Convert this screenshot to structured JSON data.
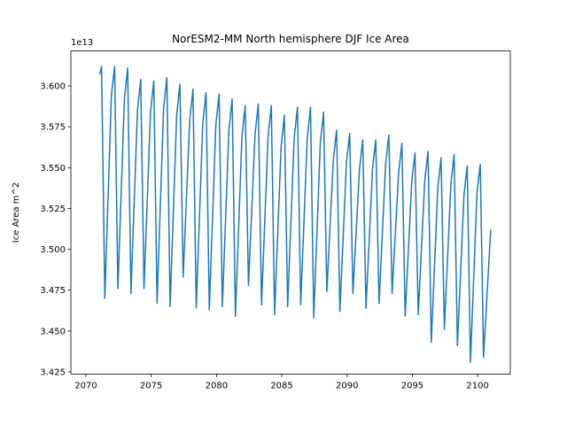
{
  "chart_data": {
    "type": "line",
    "title": "NorESM2-MM North hemisphere DJF Ice Area",
    "y_label": "Ice Area m^2",
    "y_offset_label": "1e13",
    "color": "#1f77b4",
    "grid": false,
    "xlim": [
      2068.85,
      2102.5
    ],
    "ylim": [
      3.4237,
      3.6214
    ],
    "xticks": [
      2070,
      2075,
      2080,
      2085,
      2090,
      2095,
      2100
    ],
    "yticks": [
      {
        "value": 3.425,
        "label": "3.425"
      },
      {
        "value": 3.45,
        "label": "3.450"
      },
      {
        "value": 3.475,
        "label": "3.475"
      },
      {
        "value": 3.5,
        "label": "3.500"
      },
      {
        "value": 3.525,
        "label": "3.525"
      },
      {
        "value": 3.55,
        "label": "3.550"
      },
      {
        "value": 3.575,
        "label": "3.575"
      },
      {
        "value": 3.6,
        "label": "3.600"
      }
    ],
    "x": [
      2071.05,
      2071.2,
      2071.45,
      2071.95,
      2072.2,
      2072.45,
      2072.95,
      2073.2,
      2073.45,
      2073.95,
      2074.2,
      2074.45,
      2074.95,
      2075.2,
      2075.45,
      2075.95,
      2076.2,
      2076.45,
      2076.95,
      2077.2,
      2077.45,
      2077.95,
      2078.2,
      2078.45,
      2078.95,
      2079.2,
      2079.45,
      2079.95,
      2080.2,
      2080.45,
      2080.95,
      2081.2,
      2081.45,
      2081.95,
      2082.2,
      2082.45,
      2082.95,
      2083.2,
      2083.45,
      2083.95,
      2084.2,
      2084.45,
      2084.95,
      2085.2,
      2085.45,
      2085.95,
      2086.2,
      2086.45,
      2086.95,
      2087.2,
      2087.45,
      2087.95,
      2088.2,
      2088.45,
      2088.95,
      2089.2,
      2089.45,
      2089.95,
      2090.2,
      2090.45,
      2090.95,
      2091.2,
      2091.45,
      2091.95,
      2092.2,
      2092.45,
      2092.95,
      2093.2,
      2093.45,
      2093.95,
      2094.2,
      2094.45,
      2094.95,
      2095.2,
      2095.45,
      2095.95,
      2096.2,
      2096.45,
      2096.95,
      2097.2,
      2097.45,
      2097.95,
      2098.2,
      2098.45,
      2098.95,
      2099.2,
      2099.45,
      2099.95,
      2100.2,
      2100.45,
      2101.0
    ],
    "values": [
      3.607,
      3.612,
      3.47,
      3.594,
      3.612,
      3.476,
      3.592,
      3.611,
      3.473,
      3.585,
      3.604,
      3.476,
      3.584,
      3.603,
      3.467,
      3.586,
      3.605,
      3.465,
      3.582,
      3.601,
      3.483,
      3.579,
      3.598,
      3.464,
      3.577,
      3.596,
      3.463,
      3.576,
      3.595,
      3.465,
      3.573,
      3.592,
      3.459,
      3.569,
      3.588,
      3.478,
      3.57,
      3.589,
      3.466,
      3.569,
      3.588,
      3.46,
      3.563,
      3.582,
      3.465,
      3.568,
      3.587,
      3.466,
      3.568,
      3.587,
      3.458,
      3.565,
      3.584,
      3.474,
      3.555,
      3.573,
      3.462,
      3.553,
      3.571,
      3.473,
      3.549,
      3.567,
      3.464,
      3.549,
      3.567,
      3.467,
      3.552,
      3.57,
      3.473,
      3.547,
      3.565,
      3.459,
      3.541,
      3.559,
      3.46,
      3.542,
      3.56,
      3.443,
      3.538,
      3.556,
      3.451,
      3.54,
      3.558,
      3.441,
      3.533,
      3.551,
      3.431,
      3.535,
      3.552,
      3.434,
      3.512
    ]
  }
}
